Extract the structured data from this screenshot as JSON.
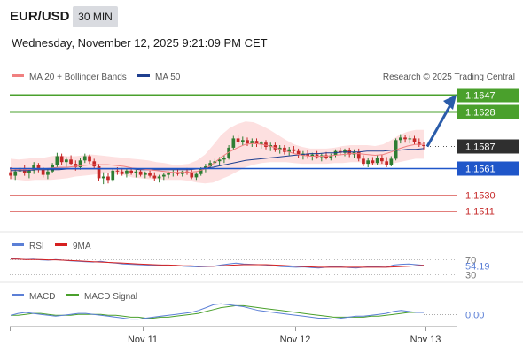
{
  "header": {
    "symbol": "EUR/USD",
    "timeframe": "30 MIN",
    "datetime": "Wednesday, November 12, 2025 9:21:09 PM CET"
  },
  "legend": {
    "ma20_label": "MA 20 + Bollinger Bands",
    "ma50_label": "MA 50",
    "copyright": "Research © 2025 Trading Central",
    "rsi_label": "RSI",
    "rsi_ma_label": "9MA",
    "macd_label": "MACD",
    "macd_signal_label": "MACD Signal"
  },
  "colors": {
    "up_candle": "#2e7d32",
    "down_candle": "#c62828",
    "target_lines": "#4aa02c",
    "pivot_line": "#1f56c9",
    "support_lines": "#d9534f",
    "current_price_box": "#2f2f2f",
    "ma20": "#f08080",
    "ma50": "#1f3f8f",
    "bollinger_fill": "#fde0e0",
    "arrow": "#2a5caa",
    "rsi": "#5b7fd6",
    "macd": "#5b7fd6",
    "macd_signal": "#4aa02c"
  },
  "chart_data": {
    "type": "candlestick",
    "y_range": [
      1.149,
      1.166
    ],
    "x_ticks": [
      "Nov 11",
      "Nov 12",
      "Nov 13"
    ],
    "current_price": "1.1587",
    "levels": [
      {
        "value": "1.1647",
        "kind": "target"
      },
      {
        "value": "1.1628",
        "kind": "target"
      },
      {
        "value": "1.1561",
        "kind": "pivot"
      },
      {
        "value": "1.1530",
        "kind": "support"
      },
      {
        "value": "1.1511",
        "kind": "support"
      }
    ],
    "candles": [
      [
        1.1556,
        1.1562,
        1.1548,
        1.1552
      ],
      [
        1.1552,
        1.156,
        1.1547,
        1.1557
      ],
      [
        1.1557,
        1.1566,
        1.1553,
        1.1561
      ],
      [
        1.1561,
        1.1564,
        1.1552,
        1.1555
      ],
      [
        1.1555,
        1.1561,
        1.1549,
        1.1558
      ],
      [
        1.1558,
        1.1568,
        1.1554,
        1.1565
      ],
      [
        1.1565,
        1.1567,
        1.1556,
        1.1559
      ],
      [
        1.1559,
        1.1562,
        1.155,
        1.1553
      ],
      [
        1.1553,
        1.156,
        1.1548,
        1.1557
      ],
      [
        1.1557,
        1.1567,
        1.1555,
        1.1564
      ],
      [
        1.1564,
        1.1579,
        1.1562,
        1.1575
      ],
      [
        1.1575,
        1.1578,
        1.1565,
        1.1568
      ],
      [
        1.1568,
        1.1574,
        1.1562,
        1.1571
      ],
      [
        1.1571,
        1.1576,
        1.1564,
        1.1566
      ],
      [
        1.1566,
        1.157,
        1.1558,
        1.1562
      ],
      [
        1.1562,
        1.1573,
        1.1559,
        1.157
      ],
      [
        1.157,
        1.1578,
        1.1567,
        1.1575
      ],
      [
        1.1575,
        1.1577,
        1.1566,
        1.1569
      ],
      [
        1.1569,
        1.1572,
        1.156,
        1.1563
      ],
      [
        1.1563,
        1.1566,
        1.1546,
        1.1549
      ],
      [
        1.1549,
        1.1556,
        1.1542,
        1.1551
      ],
      [
        1.1551,
        1.1555,
        1.1543,
        1.1547
      ],
      [
        1.1547,
        1.156,
        1.1545,
        1.1558
      ],
      [
        1.1558,
        1.1562,
        1.1553,
        1.1557
      ],
      [
        1.1557,
        1.1561,
        1.1552,
        1.1554
      ],
      [
        1.1554,
        1.156,
        1.155,
        1.1558
      ],
      [
        1.1558,
        1.1561,
        1.1553,
        1.1555
      ],
      [
        1.1555,
        1.1559,
        1.155,
        1.1557
      ],
      [
        1.1557,
        1.156,
        1.1551,
        1.1553
      ],
      [
        1.1553,
        1.1557,
        1.1549,
        1.1555
      ],
      [
        1.1555,
        1.1558,
        1.155,
        1.1552
      ],
      [
        1.1552,
        1.1556,
        1.1546,
        1.1549
      ],
      [
        1.1549,
        1.1553,
        1.1544,
        1.1551
      ],
      [
        1.1551,
        1.1555,
        1.1547,
        1.1553
      ],
      [
        1.1553,
        1.1557,
        1.1549,
        1.1555
      ],
      [
        1.1555,
        1.1559,
        1.1551,
        1.1556
      ],
      [
        1.1556,
        1.156,
        1.1552,
        1.1554
      ],
      [
        1.1554,
        1.1558,
        1.1551,
        1.1557
      ],
      [
        1.1557,
        1.1561,
        1.1553,
        1.1555
      ],
      [
        1.1555,
        1.1559,
        1.1548,
        1.155
      ],
      [
        1.155,
        1.1556,
        1.1547,
        1.1554
      ],
      [
        1.1554,
        1.1562,
        1.1552,
        1.156
      ],
      [
        1.156,
        1.1566,
        1.1556,
        1.1563
      ],
      [
        1.1563,
        1.157,
        1.156,
        1.1567
      ],
      [
        1.1567,
        1.1572,
        1.1563,
        1.1569
      ],
      [
        1.1569,
        1.1574,
        1.1565,
        1.1571
      ],
      [
        1.1571,
        1.1576,
        1.1567,
        1.1573
      ],
      [
        1.1573,
        1.1588,
        1.1571,
        1.1585
      ],
      [
        1.1585,
        1.1599,
        1.1582,
        1.1596
      ],
      [
        1.1596,
        1.16,
        1.1589,
        1.1592
      ],
      [
        1.1592,
        1.1598,
        1.1588,
        1.1594
      ],
      [
        1.1594,
        1.1597,
        1.1587,
        1.159
      ],
      [
        1.159,
        1.1596,
        1.1586,
        1.1593
      ],
      [
        1.1593,
        1.1596,
        1.1586,
        1.1589
      ],
      [
        1.1589,
        1.1593,
        1.1584,
        1.1591
      ],
      [
        1.1591,
        1.1594,
        1.1583,
        1.1586
      ],
      [
        1.1586,
        1.1591,
        1.1581,
        1.1588
      ],
      [
        1.1588,
        1.1591,
        1.158,
        1.1583
      ],
      [
        1.1583,
        1.1588,
        1.1578,
        1.1585
      ],
      [
        1.1585,
        1.1588,
        1.1577,
        1.158
      ],
      [
        1.158,
        1.1586,
        1.1576,
        1.1583
      ],
      [
        1.1583,
        1.1587,
        1.1578,
        1.1581
      ],
      [
        1.1581,
        1.1584,
        1.1573,
        1.1576
      ],
      [
        1.1576,
        1.1581,
        1.1571,
        1.1578
      ],
      [
        1.1578,
        1.1582,
        1.1572,
        1.1575
      ],
      [
        1.1575,
        1.1579,
        1.157,
        1.1577
      ],
      [
        1.1577,
        1.1581,
        1.1572,
        1.1574
      ],
      [
        1.1574,
        1.1578,
        1.1569,
        1.1576
      ],
      [
        1.1576,
        1.158,
        1.1571,
        1.1573
      ],
      [
        1.1573,
        1.1578,
        1.157,
        1.1576
      ],
      [
        1.1576,
        1.1583,
        1.1574,
        1.1581
      ],
      [
        1.1581,
        1.1585,
        1.1576,
        1.1579
      ],
      [
        1.1579,
        1.1584,
        1.1575,
        1.1582
      ],
      [
        1.1582,
        1.1585,
        1.1574,
        1.1577
      ],
      [
        1.1577,
        1.1583,
        1.1573,
        1.158
      ],
      [
        1.158,
        1.1584,
        1.1569,
        1.1572
      ],
      [
        1.1572,
        1.1576,
        1.1563,
        1.1566
      ],
      [
        1.1566,
        1.1573,
        1.1562,
        1.157
      ],
      [
        1.157,
        1.1574,
        1.1564,
        1.1567
      ],
      [
        1.1567,
        1.1576,
        1.1565,
        1.1573
      ],
      [
        1.1573,
        1.1577,
        1.1566,
        1.1569
      ],
      [
        1.1569,
        1.1574,
        1.1562,
        1.1565
      ],
      [
        1.1565,
        1.1575,
        1.1563,
        1.1572
      ],
      [
        1.1572,
        1.1596,
        1.157,
        1.1594
      ],
      [
        1.1594,
        1.1601,
        1.159,
        1.1597
      ],
      [
        1.1597,
        1.16,
        1.1591,
        1.1595
      ],
      [
        1.1595,
        1.1599,
        1.159,
        1.1596
      ],
      [
        1.1596,
        1.1599,
        1.1589,
        1.1592
      ],
      [
        1.1592,
        1.1596,
        1.1586,
        1.1588
      ],
      [
        1.1588,
        1.1592,
        1.1583,
        1.1587
      ]
    ],
    "ma20": [
      1.156,
      1.1559,
      1.1559,
      1.156,
      1.156,
      1.1561,
      1.1562,
      1.1562,
      1.1563,
      1.1564,
      1.1565,
      1.1565,
      1.1565,
      1.1564,
      1.1563,
      1.1561,
      1.156,
      1.1559,
      1.1558,
      1.1557,
      1.1556,
      1.1556,
      1.1556,
      1.1557,
      1.156,
      1.1566,
      1.1574,
      1.158,
      1.1585,
      1.1589,
      1.159,
      1.1589,
      1.1587,
      1.1584,
      1.1581,
      1.1578,
      1.1576,
      1.1575,
      1.1575,
      1.1575,
      1.1576,
      1.1577,
      1.1578,
      1.1578,
      1.1577,
      1.1576,
      1.1577,
      1.158,
      1.1584,
      1.1587,
      1.1589,
      1.1589
    ],
    "ma50": [
      1.1558,
      1.1558,
      1.1558,
      1.1559,
      1.1559,
      1.1559,
      1.1559,
      1.156,
      1.156,
      1.156,
      1.156,
      1.156,
      1.156,
      1.156,
      1.156,
      1.156,
      1.1559,
      1.1559,
      1.1559,
      1.1559,
      1.1559,
      1.1559,
      1.1559,
      1.156,
      1.1561,
      1.1562,
      1.1564,
      1.1566,
      1.1568,
      1.157,
      1.1571,
      1.1572,
      1.1573,
      1.1574,
      1.1575,
      1.1576,
      1.1577,
      1.1578,
      1.1578,
      1.1579,
      1.1579,
      1.158,
      1.158,
      1.158,
      1.1581,
      1.1581,
      1.1581,
      1.1582,
      1.1582,
      1.1583,
      1.1583,
      1.1584
    ],
    "bb_width": [
      0.0012,
      0.0012,
      0.0013,
      0.0013,
      0.0013,
      0.0014,
      0.0014,
      0.0013,
      0.0012,
      0.0012,
      0.0012,
      0.0011,
      0.001,
      0.001,
      0.001,
      0.0011,
      0.0011,
      0.0011,
      0.001,
      0.001,
      0.0009,
      0.0009,
      0.001,
      0.0013,
      0.0017,
      0.0022,
      0.0026,
      0.0028,
      0.0028,
      0.0027,
      0.0025,
      0.0022,
      0.0019,
      0.0016,
      0.0013,
      0.0011,
      0.001,
      0.0009,
      0.0009,
      0.0009,
      0.0009,
      0.001,
      0.001,
      0.001,
      0.0011,
      0.0011,
      0.0012,
      0.0014,
      0.0016,
      0.0017,
      0.0017,
      0.0017
    ],
    "rsi": {
      "ticks": [
        "70",
        "30"
      ],
      "value": "54.19",
      "y_range": [
        20,
        80
      ],
      "rsi": [
        72,
        71,
        70,
        71,
        69,
        68,
        70,
        68,
        66,
        65,
        64,
        63,
        65,
        62,
        60,
        58,
        57,
        56,
        55,
        54,
        55,
        53,
        54,
        52,
        51,
        50,
        51,
        52,
        55,
        58,
        60,
        58,
        57,
        56,
        55,
        53,
        51,
        50,
        49,
        50,
        48,
        47,
        49,
        51,
        50,
        48,
        47,
        49,
        51,
        50,
        49,
        55,
        57,
        58,
        56,
        54
      ],
      "ma": [
        71,
        71,
        70,
        70,
        70,
        69,
        69,
        68,
        67,
        66,
        65,
        64,
        63,
        62,
        61,
        60,
        59,
        58,
        57,
        56,
        55,
        55,
        54,
        53,
        53,
        52,
        52,
        52,
        53,
        54,
        55,
        56,
        56,
        56,
        56,
        55,
        54,
        53,
        52,
        51,
        50,
        49,
        49,
        49,
        49,
        49,
        49,
        49,
        49,
        49,
        49,
        50,
        51,
        52,
        53,
        54
      ]
    },
    "macd": {
      "value": "0.00",
      "y_range": [
        -0.001,
        0.0014
      ],
      "macd": [
        -0.0001,
        0.0001,
        0.0002,
        0.0001,
        0.0,
        -0.0001,
        -0.0002,
        -0.0001,
        0.0,
        0.0001,
        0.0001,
        0.0,
        -0.0001,
        -0.0002,
        -0.0003,
        -0.0004,
        -0.0005,
        -0.0005,
        -0.0004,
        -0.0003,
        -0.0002,
        -0.0001,
        0.0,
        0.0001,
        0.0002,
        0.0004,
        0.0007,
        0.001,
        0.0011,
        0.001,
        0.0009,
        0.0008,
        0.0006,
        0.0004,
        0.0003,
        0.0002,
        0.0001,
        0.0,
        -0.0001,
        -0.0002,
        -0.0003,
        -0.0004,
        -0.0004,
        -0.0005,
        -0.0004,
        -0.0003,
        -0.0002,
        -0.0002,
        -0.0001,
        0.0,
        0.0001,
        0.0003,
        0.0004,
        0.0003,
        0.0002,
        0.0002
      ],
      "signal": [
        -0.0001,
        -0.0001,
        0.0,
        0.0001,
        0.0001,
        0.0,
        -0.0001,
        -0.0001,
        -0.0001,
        0.0,
        0.0,
        0.0,
        0.0,
        -0.0001,
        -0.0001,
        -0.0002,
        -0.0003,
        -0.0003,
        -0.0004,
        -0.0004,
        -0.0003,
        -0.0003,
        -0.0002,
        -0.0001,
        0.0,
        0.0001,
        0.0003,
        0.0005,
        0.0007,
        0.0008,
        0.0009,
        0.0009,
        0.0008,
        0.0007,
        0.0006,
        0.0005,
        0.0004,
        0.0003,
        0.0002,
        0.0001,
        0.0,
        -0.0001,
        -0.0002,
        -0.0003,
        -0.0003,
        -0.0003,
        -0.0003,
        -0.0003,
        -0.0002,
        -0.0002,
        -0.0001,
        0.0,
        0.0001,
        0.0002,
        0.0002,
        0.0002
      ]
    }
  }
}
